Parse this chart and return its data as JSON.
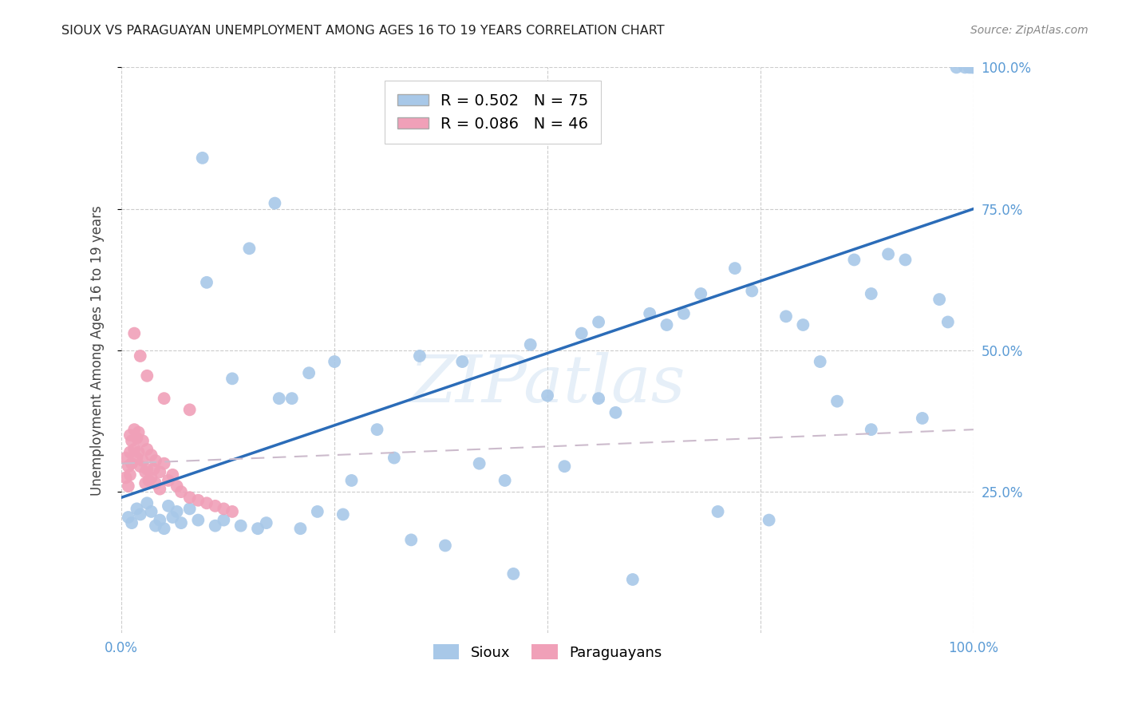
{
  "title": "SIOUX VS PARAGUAYAN UNEMPLOYMENT AMONG AGES 16 TO 19 YEARS CORRELATION CHART",
  "source": "Source: ZipAtlas.com",
  "ylabel": "Unemployment Among Ages 16 to 19 years",
  "xlim": [
    0,
    1.0
  ],
  "ylim": [
    0,
    1.0
  ],
  "sioux_R": 0.502,
  "sioux_N": 75,
  "paraguayan_R": 0.086,
  "paraguayan_N": 46,
  "sioux_color": "#a8c8e8",
  "sioux_line_color": "#2b6cb8",
  "paraguayan_color": "#f0a0b8",
  "paraguayan_line_color": "#ccbbcc",
  "watermark": "ZIPatlas",
  "sioux_x": [
    0.008,
    0.012,
    0.018,
    0.022,
    0.03,
    0.035,
    0.04,
    0.045,
    0.05,
    0.055,
    0.06,
    0.065,
    0.07,
    0.08,
    0.09,
    0.095,
    0.1,
    0.11,
    0.12,
    0.13,
    0.14,
    0.15,
    0.16,
    0.17,
    0.185,
    0.2,
    0.21,
    0.22,
    0.23,
    0.25,
    0.27,
    0.3,
    0.32,
    0.35,
    0.38,
    0.4,
    0.42,
    0.45,
    0.48,
    0.5,
    0.52,
    0.54,
    0.56,
    0.58,
    0.6,
    0.62,
    0.64,
    0.66,
    0.68,
    0.7,
    0.72,
    0.74,
    0.76,
    0.78,
    0.8,
    0.82,
    0.84,
    0.86,
    0.88,
    0.9,
    0.92,
    0.94,
    0.96,
    0.97,
    0.98,
    0.99,
    0.995,
    0.998,
    1.0,
    0.18,
    0.26,
    0.34,
    0.46,
    0.56,
    0.88
  ],
  "sioux_y": [
    0.205,
    0.195,
    0.22,
    0.21,
    0.23,
    0.215,
    0.19,
    0.2,
    0.185,
    0.225,
    0.205,
    0.215,
    0.195,
    0.22,
    0.2,
    0.84,
    0.62,
    0.19,
    0.2,
    0.45,
    0.19,
    0.68,
    0.185,
    0.195,
    0.415,
    0.415,
    0.185,
    0.46,
    0.215,
    0.48,
    0.27,
    0.36,
    0.31,
    0.49,
    0.155,
    0.48,
    0.3,
    0.27,
    0.51,
    0.42,
    0.295,
    0.53,
    0.415,
    0.39,
    0.095,
    0.565,
    0.545,
    0.565,
    0.6,
    0.215,
    0.645,
    0.605,
    0.2,
    0.56,
    0.545,
    0.48,
    0.41,
    0.66,
    0.36,
    0.67,
    0.66,
    0.38,
    0.59,
    0.55,
    1.0,
    1.0,
    1.0,
    1.0,
    1.0,
    0.76,
    0.21,
    0.165,
    0.105,
    0.55,
    0.6
  ],
  "par_x": [
    0.005,
    0.005,
    0.008,
    0.008,
    0.01,
    0.01,
    0.01,
    0.012,
    0.012,
    0.015,
    0.015,
    0.018,
    0.018,
    0.02,
    0.02,
    0.022,
    0.025,
    0.025,
    0.028,
    0.028,
    0.03,
    0.03,
    0.032,
    0.035,
    0.035,
    0.038,
    0.04,
    0.04,
    0.045,
    0.045,
    0.05,
    0.055,
    0.06,
    0.065,
    0.07,
    0.08,
    0.09,
    0.1,
    0.11,
    0.12,
    0.13,
    0.015,
    0.022,
    0.03,
    0.05,
    0.08
  ],
  "par_y": [
    0.31,
    0.275,
    0.295,
    0.26,
    0.35,
    0.32,
    0.28,
    0.34,
    0.3,
    0.36,
    0.325,
    0.345,
    0.31,
    0.355,
    0.32,
    0.295,
    0.34,
    0.305,
    0.285,
    0.265,
    0.325,
    0.29,
    0.27,
    0.315,
    0.275,
    0.29,
    0.305,
    0.265,
    0.285,
    0.255,
    0.3,
    0.27,
    0.28,
    0.26,
    0.25,
    0.24,
    0.235,
    0.23,
    0.225,
    0.22,
    0.215,
    0.53,
    0.49,
    0.455,
    0.415,
    0.395
  ],
  "sioux_line_x": [
    0.0,
    1.0
  ],
  "sioux_line_y": [
    0.24,
    0.75
  ],
  "par_line_x": [
    0.0,
    1.0
  ],
  "par_line_y": [
    0.3,
    0.36
  ]
}
